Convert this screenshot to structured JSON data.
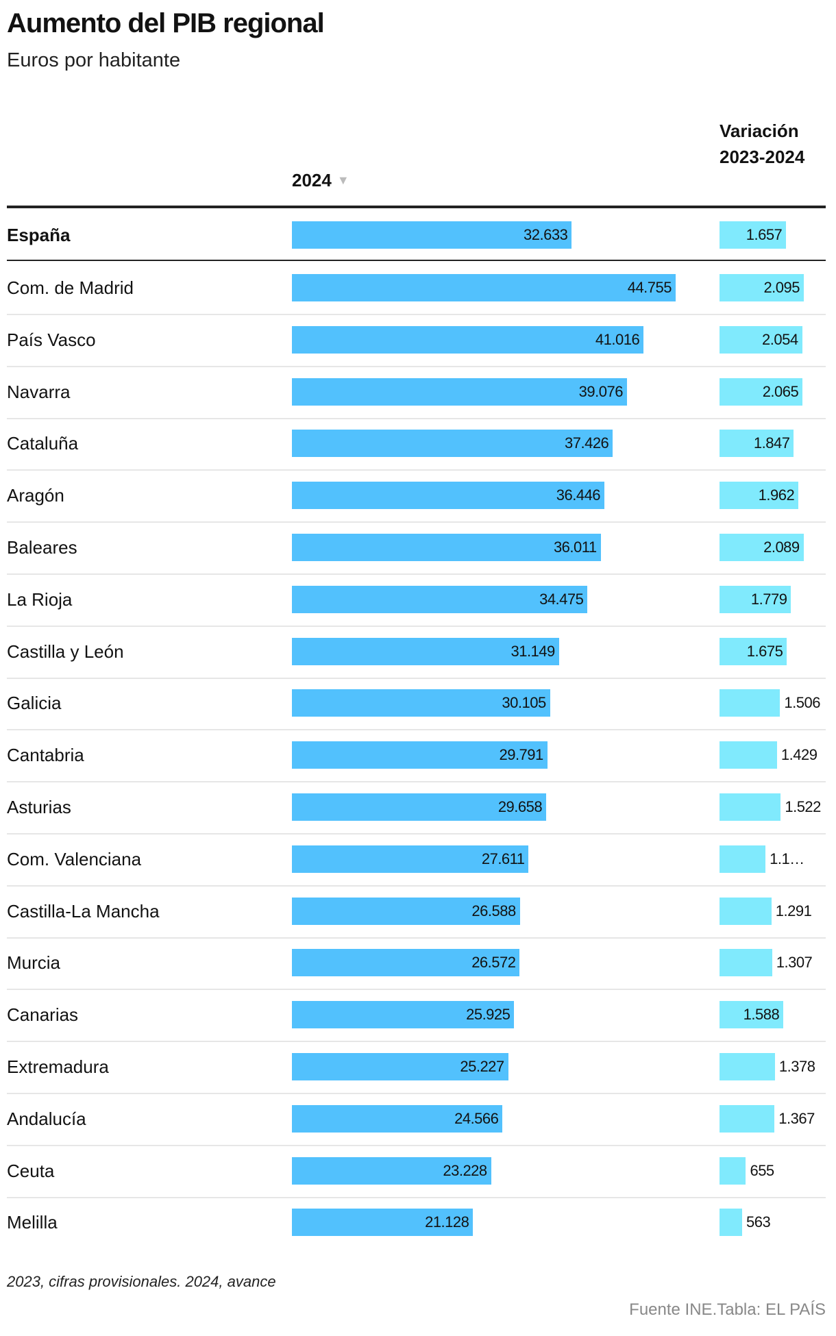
{
  "title": "Aumento del PIB regional",
  "subtitle": "Euros por habitante",
  "columns": {
    "col1": "2024",
    "col1_sort_icon": "triangle-down-icon",
    "col2": "Variación 2023-2024"
  },
  "colors": {
    "bar_2024": "#52c1fd",
    "bar_variation": "#80eafd"
  },
  "chart_data": {
    "type": "table",
    "total": {
      "region": "España",
      "v2024": 32633,
      "v2024_label": "32.633",
      "var": 1657,
      "var_label": "1.657"
    },
    "rows": [
      {
        "region": "Com. de Madrid",
        "v2024": 44755,
        "v2024_label": "44.755",
        "var": 2095,
        "var_label": "2.095"
      },
      {
        "region": "País Vasco",
        "v2024": 41016,
        "v2024_label": "41.016",
        "var": 2054,
        "var_label": "2.054"
      },
      {
        "region": "Navarra",
        "v2024": 39076,
        "v2024_label": "39.076",
        "var": 2065,
        "var_label": "2.065"
      },
      {
        "region": "Cataluña",
        "v2024": 37426,
        "v2024_label": "37.426",
        "var": 1847,
        "var_label": "1.847"
      },
      {
        "region": "Aragón",
        "v2024": 36446,
        "v2024_label": "36.446",
        "var": 1962,
        "var_label": "1.962"
      },
      {
        "region": "Baleares",
        "v2024": 36011,
        "v2024_label": "36.011",
        "var": 2089,
        "var_label": "2.089"
      },
      {
        "region": "La Rioja",
        "v2024": 34475,
        "v2024_label": "34.475",
        "var": 1779,
        "var_label": "1.779"
      },
      {
        "region": "Castilla y León",
        "v2024": 31149,
        "v2024_label": "31.149",
        "var": 1675,
        "var_label": "1.675"
      },
      {
        "region": "Galicia",
        "v2024": 30105,
        "v2024_label": "30.105",
        "var": 1506,
        "var_label": "1.506"
      },
      {
        "region": "Cantabria",
        "v2024": 29791,
        "v2024_label": "29.791",
        "var": 1429,
        "var_label": "1.429"
      },
      {
        "region": "Asturias",
        "v2024": 29658,
        "v2024_label": "29.658",
        "var": 1522,
        "var_label": "1.522"
      },
      {
        "region": "Com. Valenciana",
        "v2024": 27611,
        "v2024_label": "27.611",
        "var": 1143,
        "var_label": "1.1…"
      },
      {
        "region": "Castilla-La Mancha",
        "v2024": 26588,
        "v2024_label": "26.588",
        "var": 1291,
        "var_label": "1.291"
      },
      {
        "region": "Murcia",
        "v2024": 26572,
        "v2024_label": "26.572",
        "var": 1307,
        "var_label": "1.307"
      },
      {
        "region": "Canarias",
        "v2024": 25925,
        "v2024_label": "25.925",
        "var": 1588,
        "var_label": "1.588"
      },
      {
        "region": "Extremadura",
        "v2024": 25227,
        "v2024_label": "25.227",
        "var": 1378,
        "var_label": "1.378"
      },
      {
        "region": "Andalucía",
        "v2024": 24566,
        "v2024_label": "24.566",
        "var": 1367,
        "var_label": "1.367"
      },
      {
        "region": "Ceuta",
        "v2024": 23228,
        "v2024_label": "23.228",
        "var": 655,
        "var_label": "655"
      },
      {
        "region": "Melilla",
        "v2024": 21128,
        "v2024_label": "21.128",
        "var": 563,
        "var_label": "563"
      }
    ]
  },
  "footer": {
    "note": "2023, cifras provisionales. 2024, avance",
    "source": "Fuente INE.Tabla: EL PAÍS"
  }
}
